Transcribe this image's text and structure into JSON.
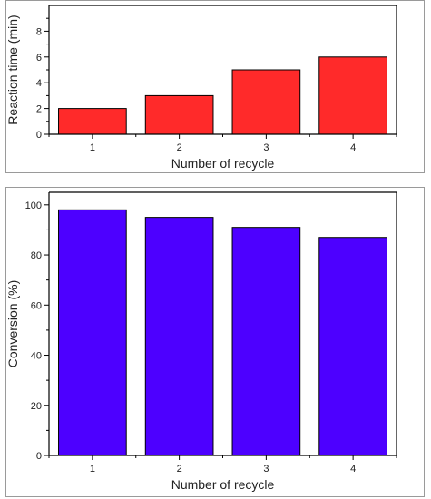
{
  "chart_data": [
    {
      "type": "bar",
      "categories": [
        "1",
        "2",
        "3",
        "4"
      ],
      "values": [
        2,
        3,
        5,
        6
      ],
      "xlabel": "Number of recycle",
      "ylabel": "Reaction time (min)",
      "ylim": [
        0,
        10
      ],
      "yticks": [
        0,
        2,
        4,
        6,
        8
      ],
      "bar_color": "#ff2a2a",
      "grid": false
    },
    {
      "type": "bar",
      "categories": [
        "1",
        "2",
        "3",
        "4"
      ],
      "values": [
        98,
        95,
        91,
        87
      ],
      "xlabel": "Number of recycle",
      "ylabel": "Conversion (%)",
      "ylim": [
        0,
        105
      ],
      "yticks": [
        0,
        20,
        40,
        60,
        80,
        100
      ],
      "bar_color": "#4d00ff",
      "grid": false
    }
  ]
}
